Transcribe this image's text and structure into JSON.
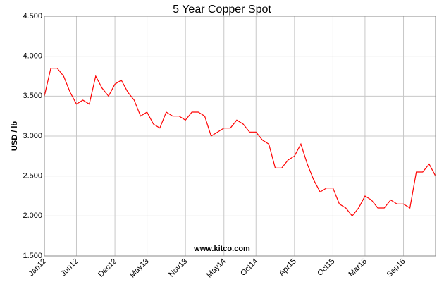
{
  "chart_data": {
    "type": "line",
    "title": "5 Year Copper Spot",
    "y_label": "USD / lb",
    "annotation": "www.kitco.com",
    "color": "#ff0000",
    "grid": true,
    "categories": [
      "Jan12",
      null,
      null,
      null,
      null,
      "Jun12",
      null,
      null,
      null,
      null,
      null,
      "Dec12",
      null,
      null,
      null,
      null,
      "May13",
      null,
      null,
      null,
      null,
      null,
      "Nov13",
      null,
      null,
      null,
      null,
      null,
      "May14",
      null,
      null,
      null,
      null,
      "Oct14",
      null,
      null,
      null,
      null,
      null,
      "Apr15",
      null,
      null,
      null,
      null,
      null,
      "Oct15",
      null,
      null,
      null,
      null,
      "Mar16",
      null,
      null,
      null,
      null,
      null,
      "Sep16",
      null,
      null,
      null,
      null,
      null
    ],
    "values": [
      3.5,
      3.85,
      3.85,
      3.75,
      3.55,
      3.4,
      3.45,
      3.4,
      3.75,
      3.6,
      3.5,
      3.65,
      3.7,
      3.55,
      3.45,
      3.25,
      3.3,
      3.15,
      3.1,
      3.3,
      3.25,
      3.25,
      3.2,
      3.3,
      3.3,
      3.25,
      3.0,
      3.05,
      3.1,
      3.1,
      3.2,
      3.15,
      3.05,
      3.05,
      2.95,
      2.9,
      2.6,
      2.6,
      2.7,
      2.75,
      2.9,
      2.65,
      2.45,
      2.3,
      2.35,
      2.35,
      2.15,
      2.1,
      2.0,
      2.1,
      2.25,
      2.2,
      2.1,
      2.1,
      2.2,
      2.15,
      2.15,
      2.1,
      2.55,
      2.55,
      2.65,
      2.5
    ],
    "ylim": [
      1.5,
      4.5
    ],
    "yticks": [
      {
        "value": 1.5,
        "label": "1.500"
      },
      {
        "value": 2.0,
        "label": "2.000"
      },
      {
        "value": 2.5,
        "label": "2.500"
      },
      {
        "value": 3.0,
        "label": "3.000"
      },
      {
        "value": 3.5,
        "label": "3.500"
      },
      {
        "value": 4.0,
        "label": "4.000"
      },
      {
        "value": 4.5,
        "label": "4.500"
      }
    ]
  }
}
